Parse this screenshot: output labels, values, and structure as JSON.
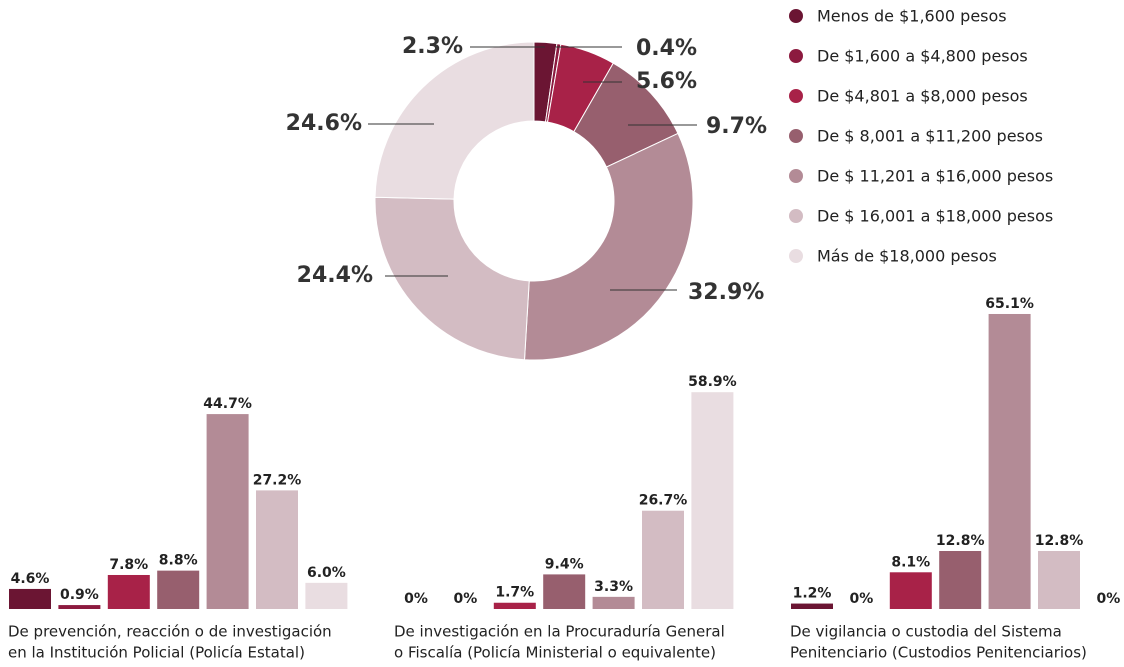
{
  "chart_data": [
    {
      "type": "pie",
      "categories": [
        "Menos de $1,600 pesos",
        "De $1,600 a $4,800 pesos",
        "De $4,801 a $8,000 pesos",
        "De $ 8,001 a $11,200 pesos",
        "De $ 11,201 a $16,000 pesos",
        "De $ 16,001 a $18,000 pesos",
        "Más de $18,000 pesos"
      ],
      "values": [
        2.3,
        0.4,
        5.6,
        9.7,
        32.9,
        24.4,
        24.6
      ],
      "value_labels": [
        "2.3%",
        "0.4%",
        "5.6%",
        "9.7%",
        "32.9%",
        "24.4%",
        "24.6%"
      ],
      "colors": [
        "#6b1533",
        "#8c1a3f",
        "#a82248",
        "#975f6e",
        "#b38b96",
        "#d3bcc3",
        "#e9dde1"
      ],
      "legend": "top-right"
    },
    {
      "type": "bar",
      "title": [
        "De prevención, reacción o de investigación",
        "en la Institución Policial (Policía Estatal)"
      ],
      "values": [
        4.6,
        0.9,
        7.8,
        8.8,
        44.7,
        27.2,
        6.0
      ],
      "value_labels": [
        "4.6%",
        "0.9%",
        "7.8%",
        "8.8%",
        "44.7%",
        "27.2%",
        "6.0%"
      ],
      "ylim": [
        0,
        68.8
      ]
    },
    {
      "type": "bar",
      "title": [
        "De investigación en la Procuraduría General",
        "o Fiscalía (Policía Ministerial o equivalente)"
      ],
      "values": [
        0,
        0,
        1.7,
        9.4,
        3.3,
        26.7,
        58.9
      ],
      "value_labels": [
        "0%",
        "0%",
        "1.7%",
        "9.4%",
        "3.3%",
        "26.7%",
        "58.9%"
      ],
      "ylim": [
        0,
        81.5
      ]
    },
    {
      "type": "bar",
      "title": [
        "De vigilancia o custodia del Sistema",
        "Penitenciario (Custodios Penitenciarios)"
      ],
      "values": [
        1.2,
        0,
        8.1,
        12.8,
        65.1,
        12.8,
        0
      ],
      "value_labels": [
        "1.2%",
        "0%",
        "8.1%",
        "12.8%",
        "65.1%",
        "12.8%",
        "0%"
      ],
      "ylim": [
        0,
        66.2
      ]
    }
  ]
}
